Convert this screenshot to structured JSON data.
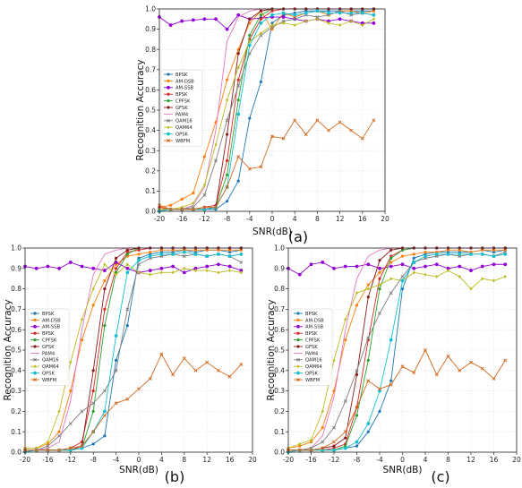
{
  "chart_data": [
    {
      "type": "line",
      "panel_label": "(a)",
      "xlabel": "SNR(dB)",
      "ylabel": "Recognition Accuracy",
      "xlim": [
        -20,
        20
      ],
      "ylim": [
        0,
        1
      ],
      "xticks": [
        -20,
        -16,
        -12,
        -8,
        -4,
        0,
        4,
        8,
        12,
        16,
        20
      ],
      "yticks": [
        0.0,
        0.1,
        0.2,
        0.3,
        0.4,
        0.5,
        0.6,
        0.7,
        0.8,
        0.9,
        1.0
      ],
      "x": [
        -20,
        -18,
        -16,
        -14,
        -12,
        -10,
        -8,
        -6,
        -4,
        -2,
        0,
        2,
        4,
        6,
        8,
        10,
        12,
        14,
        16,
        18
      ],
      "grid": true,
      "legend_position": "left",
      "series": [
        {
          "name": "BPSK",
          "color": "#1f77b4",
          "values": [
            0.01,
            0.01,
            0.01,
            0.01,
            0.01,
            0.01,
            0.05,
            0.15,
            0.46,
            0.64,
            0.93,
            0.97,
            0.98,
            0.99,
            0.99,
            0.99,
            0.99,
            0.99,
            0.99,
            0.99
          ]
        },
        {
          "name": "AM-DSB",
          "color": "#ff7f0e",
          "values": [
            0.02,
            0.03,
            0.06,
            0.09,
            0.27,
            0.44,
            0.65,
            0.8,
            0.93,
            0.99,
            0.9,
            0.98,
            0.96,
            0.98,
            0.99,
            0.97,
            0.99,
            0.99,
            0.98,
            0.99
          ]
        },
        {
          "name": "AM-SSB",
          "color": "#9400d3",
          "values": [
            0.96,
            0.92,
            0.94,
            0.945,
            0.95,
            0.95,
            0.9,
            0.97,
            0.95,
            0.955,
            0.96,
            0.96,
            0.95,
            0.94,
            0.95,
            0.94,
            0.95,
            0.94,
            0.93,
            0.93
          ]
        },
        {
          "name": "BPSK",
          "color": "#d62728",
          "values": [
            0.02,
            0.01,
            0.01,
            0.01,
            0.02,
            0.03,
            0.25,
            0.65,
            0.85,
            0.95,
            0.99,
            1.0,
            1.0,
            1.0,
            1.0,
            1.0,
            1.0,
            1.0,
            1.0,
            1.0
          ]
        },
        {
          "name": "CPFSK",
          "color": "#2ca02c",
          "values": [
            0.01,
            0.01,
            0.01,
            0.01,
            0.01,
            0.02,
            0.18,
            0.55,
            0.87,
            0.97,
            1.0,
            1.0,
            1.0,
            1.0,
            1.0,
            1.0,
            1.0,
            1.0,
            1.0,
            1.0
          ]
        },
        {
          "name": "GFSK",
          "color": "#8b1a1a",
          "values": [
            0.01,
            0.01,
            0.01,
            0.01,
            0.01,
            0.02,
            0.38,
            0.78,
            0.95,
            0.99,
            1.0,
            1.0,
            1.0,
            1.0,
            1.0,
            1.0,
            1.0,
            1.0,
            1.0,
            1.0
          ]
        },
        {
          "name": "PAM4",
          "color": "#e377c2",
          "values": [
            0.01,
            0.01,
            0.01,
            0.03,
            0.12,
            0.4,
            0.84,
            0.96,
            0.99,
            1.0,
            1.0,
            1.0,
            1.0,
            1.0,
            1.0,
            1.0,
            1.0,
            1.0,
            1.0,
            1.0
          ]
        },
        {
          "name": "QAM16",
          "color": "#7f7f7f",
          "values": [
            0.01,
            0.01,
            0.01,
            0.02,
            0.08,
            0.25,
            0.45,
            0.62,
            0.78,
            0.87,
            0.91,
            0.94,
            0.95,
            0.97,
            0.96,
            0.97,
            0.99,
            0.97,
            0.98,
            0.97
          ]
        },
        {
          "name": "QAM64",
          "color": "#bcbd22",
          "values": [
            0.01,
            0.01,
            0.02,
            0.04,
            0.13,
            0.33,
            0.55,
            0.71,
            0.84,
            0.88,
            0.92,
            0.93,
            0.92,
            0.94,
            0.95,
            0.93,
            0.92,
            0.94,
            0.92,
            0.95
          ]
        },
        {
          "name": "QPSK",
          "color": "#17becf",
          "values": [
            0.0,
            0.01,
            0.01,
            0.01,
            0.01,
            0.02,
            0.12,
            0.48,
            0.82,
            0.93,
            0.97,
            0.98,
            0.97,
            0.98,
            0.99,
            0.98,
            0.98,
            0.98,
            0.98,
            0.97
          ]
        },
        {
          "name": "WBFM",
          "color": "#d2691e",
          "values": [
            0.03,
            0.01,
            0.01,
            0.01,
            0.02,
            0.02,
            0.12,
            0.27,
            0.21,
            0.22,
            0.37,
            0.36,
            0.45,
            0.38,
            0.45,
            0.4,
            0.44,
            0.4,
            0.36,
            0.45
          ]
        }
      ]
    },
    {
      "type": "line",
      "panel_label": "(b)",
      "xlabel": "SNR(dB)",
      "ylabel": "Recognition Accuracy",
      "xlim": [
        -20,
        20
      ],
      "ylim": [
        0,
        1
      ],
      "xticks": [
        -20,
        -16,
        -12,
        -8,
        -4,
        0,
        4,
        8,
        12,
        16,
        20
      ],
      "yticks": [
        0.0,
        0.1,
        0.2,
        0.3,
        0.4,
        0.5,
        0.6,
        0.7,
        0.8,
        0.9,
        1.0
      ],
      "x": [
        -20,
        -18,
        -16,
        -14,
        -12,
        -10,
        -8,
        -6,
        -4,
        -2,
        0,
        2,
        4,
        6,
        8,
        10,
        12,
        14,
        16,
        18
      ],
      "grid": true,
      "legend_position": "left",
      "series": [
        {
          "name": "BPSK",
          "color": "#1f77b4",
          "values": [
            0.01,
            0.01,
            0.01,
            0.01,
            0.01,
            0.02,
            0.04,
            0.08,
            0.45,
            0.62,
            0.95,
            0.97,
            0.98,
            0.98,
            0.99,
            0.98,
            0.99,
            0.99,
            0.98,
            0.99
          ]
        },
        {
          "name": "AM-DSB",
          "color": "#ff7f0e",
          "values": [
            0.02,
            0.02,
            0.04,
            0.1,
            0.3,
            0.55,
            0.72,
            0.84,
            0.92,
            0.96,
            0.97,
            0.98,
            0.99,
            0.99,
            0.99,
            0.99,
            0.99,
            0.99,
            0.99,
            0.99
          ]
        },
        {
          "name": "AM-SSB",
          "color": "#9400d3",
          "values": [
            0.91,
            0.9,
            0.91,
            0.9,
            0.93,
            0.91,
            0.9,
            0.89,
            0.93,
            0.9,
            0.88,
            0.89,
            0.9,
            0.91,
            0.88,
            0.9,
            0.91,
            0.92,
            0.91,
            0.89
          ]
        },
        {
          "name": "BPSK",
          "color": "#d62728",
          "values": [
            0.01,
            0.01,
            0.01,
            0.01,
            0.02,
            0.05,
            0.3,
            0.7,
            0.9,
            0.98,
            0.99,
            1.0,
            1.0,
            1.0,
            1.0,
            1.0,
            1.0,
            1.0,
            1.0,
            1.0
          ]
        },
        {
          "name": "CPFSK",
          "color": "#2ca02c",
          "values": [
            0.01,
            0.01,
            0.01,
            0.01,
            0.01,
            0.02,
            0.2,
            0.62,
            0.88,
            0.97,
            1.0,
            1.0,
            1.0,
            1.0,
            1.0,
            1.0,
            1.0,
            1.0,
            1.0,
            1.0
          ]
        },
        {
          "name": "GFSK",
          "color": "#8b1a1a",
          "values": [
            0.01,
            0.01,
            0.01,
            0.01,
            0.01,
            0.03,
            0.4,
            0.8,
            0.95,
            0.99,
            1.0,
            1.0,
            1.0,
            1.0,
            1.0,
            1.0,
            1.0,
            1.0,
            1.0,
            1.0
          ]
        },
        {
          "name": "PAM4",
          "color": "#e377c2",
          "values": [
            0.01,
            0.01,
            0.02,
            0.05,
            0.25,
            0.6,
            0.87,
            0.97,
            0.99,
            1.0,
            1.0,
            1.0,
            1.0,
            1.0,
            1.0,
            1.0,
            1.0,
            1.0,
            1.0,
            1.0
          ]
        },
        {
          "name": "QAM16",
          "color": "#7f7f7f",
          "values": [
            0.01,
            0.01,
            0.03,
            0.08,
            0.14,
            0.2,
            0.24,
            0.3,
            0.4,
            0.7,
            0.92,
            0.95,
            0.96,
            0.97,
            0.96,
            0.97,
            0.96,
            0.97,
            0.96,
            0.93
          ]
        },
        {
          "name": "QAM64",
          "color": "#bcbd22",
          "values": [
            0.02,
            0.02,
            0.05,
            0.2,
            0.44,
            0.65,
            0.8,
            0.92,
            0.87,
            0.92,
            0.88,
            0.87,
            0.88,
            0.88,
            0.9,
            0.89,
            0.89,
            0.88,
            0.89,
            0.88
          ]
        },
        {
          "name": "QPSK",
          "color": "#17becf",
          "values": [
            0.0,
            0.01,
            0.01,
            0.01,
            0.01,
            0.02,
            0.1,
            0.2,
            0.57,
            0.88,
            0.94,
            0.96,
            0.97,
            0.97,
            0.98,
            0.97,
            0.96,
            0.97,
            0.96,
            0.97
          ]
        },
        {
          "name": "WBFM",
          "color": "#d2691e",
          "values": [
            0.01,
            0.01,
            0.01,
            0.01,
            0.02,
            0.03,
            0.1,
            0.18,
            0.24,
            0.26,
            0.31,
            0.36,
            0.48,
            0.38,
            0.46,
            0.4,
            0.44,
            0.4,
            0.37,
            0.43
          ]
        }
      ]
    },
    {
      "type": "line",
      "panel_label": "(c)",
      "xlabel": "SNR(dB)",
      "ylabel": "Recognition Accuracy",
      "xlim": [
        -20,
        20
      ],
      "ylim": [
        0,
        1
      ],
      "xticks": [
        -20,
        -16,
        -12,
        -8,
        -4,
        0,
        4,
        8,
        12,
        16,
        20
      ],
      "yticks": [
        0.0,
        0.1,
        0.2,
        0.3,
        0.4,
        0.5,
        0.6,
        0.7,
        0.8,
        0.9,
        1.0
      ],
      "x": [
        -20,
        -18,
        -16,
        -14,
        -12,
        -10,
        -8,
        -6,
        -4,
        -2,
        0,
        2,
        4,
        6,
        8,
        10,
        12,
        14,
        16,
        18
      ],
      "grid": true,
      "legend_position": "left",
      "series": [
        {
          "name": "BPSK",
          "color": "#1f77b4",
          "values": [
            0.01,
            0.01,
            0.01,
            0.01,
            0.01,
            0.02,
            0.03,
            0.1,
            0.2,
            0.35,
            0.8,
            0.95,
            0.97,
            0.98,
            0.98,
            0.98,
            0.98,
            0.99,
            0.98,
            0.99
          ]
        },
        {
          "name": "AM-DSB",
          "color": "#ff7f0e",
          "values": [
            0.02,
            0.03,
            0.05,
            0.12,
            0.3,
            0.55,
            0.72,
            0.82,
            0.88,
            0.93,
            0.96,
            0.97,
            0.98,
            0.98,
            0.99,
            0.99,
            0.98,
            0.99,
            0.99,
            0.99
          ]
        },
        {
          "name": "AM-SSB",
          "color": "#9400d3",
          "values": [
            0.9,
            0.87,
            0.92,
            0.93,
            0.9,
            0.91,
            0.91,
            0.92,
            0.9,
            0.91,
            0.92,
            0.9,
            0.91,
            0.92,
            0.9,
            0.91,
            0.89,
            0.91,
            0.92,
            0.92
          ]
        },
        {
          "name": "BPSK",
          "color": "#d62728",
          "values": [
            0.01,
            0.01,
            0.01,
            0.01,
            0.02,
            0.04,
            0.22,
            0.55,
            0.85,
            0.96,
            0.99,
            1.0,
            1.0,
            1.0,
            1.0,
            1.0,
            1.0,
            1.0,
            1.0,
            1.0
          ]
        },
        {
          "name": "CPFSK",
          "color": "#2ca02c",
          "values": [
            0.01,
            0.01,
            0.01,
            0.01,
            0.01,
            0.03,
            0.18,
            0.45,
            0.8,
            0.95,
            0.99,
            1.0,
            1.0,
            1.0,
            1.0,
            1.0,
            1.0,
            1.0,
            1.0,
            1.0
          ]
        },
        {
          "name": "GFSK",
          "color": "#8b1a1a",
          "values": [
            0.01,
            0.01,
            0.01,
            0.02,
            0.03,
            0.07,
            0.38,
            0.76,
            0.94,
            0.99,
            1.0,
            1.0,
            1.0,
            1.0,
            1.0,
            1.0,
            1.0,
            1.0,
            1.0,
            1.0
          ]
        },
        {
          "name": "PAM4",
          "color": "#e377c2",
          "values": [
            0.01,
            0.01,
            0.02,
            0.08,
            0.27,
            0.6,
            0.85,
            0.96,
            0.99,
            1.0,
            1.0,
            1.0,
            1.0,
            1.0,
            1.0,
            1.0,
            1.0,
            1.0,
            1.0,
            1.0
          ]
        },
        {
          "name": "QAM16",
          "color": "#7f7f7f",
          "values": [
            0.01,
            0.01,
            0.02,
            0.05,
            0.12,
            0.25,
            0.4,
            0.56,
            0.68,
            0.78,
            0.86,
            0.93,
            0.95,
            0.96,
            0.97,
            0.96,
            0.97,
            0.97,
            0.96,
            0.98
          ]
        },
        {
          "name": "QAM64",
          "color": "#bcbd22",
          "values": [
            0.02,
            0.04,
            0.06,
            0.2,
            0.45,
            0.65,
            0.78,
            0.8,
            0.82,
            0.85,
            0.84,
            0.88,
            0.87,
            0.86,
            0.89,
            0.86,
            0.8,
            0.85,
            0.84,
            0.86
          ]
        },
        {
          "name": "QPSK",
          "color": "#17becf",
          "values": [
            0.0,
            0.01,
            0.01,
            0.01,
            0.01,
            0.02,
            0.05,
            0.14,
            0.3,
            0.55,
            0.84,
            0.93,
            0.96,
            0.97,
            0.97,
            0.97,
            0.97,
            0.97,
            0.96,
            0.97
          ]
        },
        {
          "name": "WBFM",
          "color": "#d2691e",
          "values": [
            0.01,
            0.01,
            0.01,
            0.02,
            0.05,
            0.1,
            0.22,
            0.35,
            0.31,
            0.33,
            0.42,
            0.39,
            0.5,
            0.38,
            0.47,
            0.4,
            0.44,
            0.41,
            0.36,
            0.45
          ]
        }
      ]
    }
  ]
}
